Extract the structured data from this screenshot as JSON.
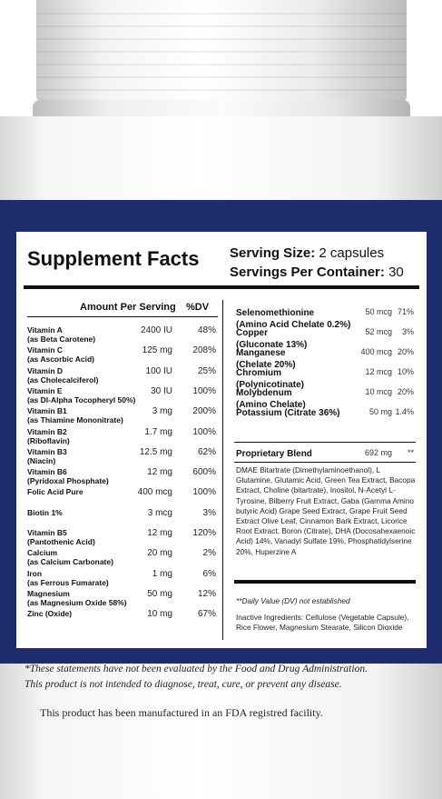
{
  "panel": {
    "title": "Supplement Facts",
    "serving_size_label": "Serving Size:",
    "serving_size_value": "2 capsules",
    "servings_label": "Servings Per Container:",
    "servings_value": "30",
    "col_amount": "Amount Per Serving",
    "col_dv": "%DV"
  },
  "left_rows": [
    {
      "n1": "Vitamin A",
      "n2": "(as Beta Carotene)",
      "amt": "2400 IU",
      "dv": "48%"
    },
    {
      "n1": "Vitamin C",
      "n2": "(as Ascorbic Acid)",
      "amt": "125 mg",
      "dv": "208%"
    },
    {
      "n1": "Vitamin D",
      "n2": "(as Cholecalciferol)",
      "amt": "100 IU",
      "dv": "25%"
    },
    {
      "n1": "Vitamin E",
      "n2": "(as Dl-Alpha Tocopheryl 50%)",
      "amt": "30 IU",
      "dv": "100%"
    },
    {
      "n1": "Vitamin B1",
      "n2": "(as Thiamine Mononitrate)",
      "amt": "3 mg",
      "dv": "200%"
    },
    {
      "n1": "Vitamin B2",
      "n2": "(Riboflavin)",
      "amt": "1.7 mg",
      "dv": "100%"
    },
    {
      "n1": "Vitamin B3",
      "n2": "(Niacin)",
      "amt": "12.5 mg",
      "dv": "62%"
    },
    {
      "n1": "Vitamin B6",
      "n2": "(Pyridoxal Phosphate)",
      "amt": "12 mg",
      "dv": "600%"
    },
    {
      "n1": "Folic Acid Pure",
      "n2": "",
      "amt": "400 mcg",
      "dv": "100%"
    },
    {
      "n1": "Biotin 1%",
      "n2": "",
      "amt": "3 mcg",
      "dv": "3%"
    },
    {
      "n1": "Vitamin B5",
      "n2": "(Pantothenic Acid)",
      "amt": "12 mg",
      "dv": "120%"
    },
    {
      "n1": "Calcium",
      "n2": "(as Calcium Carbonate)",
      "amt": "20 mg",
      "dv": "2%"
    },
    {
      "n1": "Iron",
      "n2": "(as Ferrous Fumarate)",
      "amt": "1 mg",
      "dv": "6%"
    },
    {
      "n1": "Magnesium",
      "n2": "(as Magnesium Oxide 58%)",
      "amt": "50 mg",
      "dv": "12%"
    },
    {
      "n1": "Zinc (Oxide)",
      "n2": "",
      "amt": "10 mg",
      "dv": "67%"
    }
  ],
  "right_rows": [
    {
      "n1": "Selenomethionine",
      "n2": "(Amino Acid Chelate 0.2%)",
      "amt": "50 mcg",
      "dv": "71%"
    },
    {
      "n1": "Copper",
      "n2": "(Gluconate 13%)",
      "amt": "52 mcg",
      "dv": "3%"
    },
    {
      "n1": "Manganese",
      "n2": "(Chelate 20%)",
      "amt": "400 mcg",
      "dv": "20%"
    },
    {
      "n1": "Chromium",
      "n2": "(Polynicotinate)",
      "amt": "12 mcg",
      "dv": "10%"
    },
    {
      "n1": "Molybdenum",
      "n2": "(Amino Chelate)",
      "amt": "10 mcg",
      "dv": "20%"
    },
    {
      "n1": "Potassium (Citrate 36%)",
      "n2": "",
      "amt": "50 mg",
      "dv": "1.4%"
    }
  ],
  "blend": {
    "name": "Proprietary Blend",
    "amt": "692 mg",
    "dv": "**",
    "ingredients": "DMAE Bitartrate (Dimethylaminoethanol), L Glutamine, Glutamic Acid, Green Tea Extract, Bacopa Extract, Choline (bitartrate), Inositol, N-Acetyl L-Tyrosine, Bilberry Fruit Extract, Gaba (Gamma Amino butyric Acid) Grape Seed Extract, Grape Fruit Seed Extract Olive Leaf, Cinnamon Bark Extract, Licorice Root Extract, Boron (Citrate), DHA (Docosahexaenoic Acid) 14%, Vanadyl Sulfate 19%, Phosphatidylserine 20%, Huperzine A"
  },
  "dv_note": "**Daily Value (DV) not established",
  "inactive": "Inactive Ingredients: Cellulose (Vegetable Capsule), Rice Flower, Magnesium Stearate, Silicon Dioxide",
  "disclaimer_1": "*These statements have not been evaluated by the Food and Drug Administration.",
  "disclaimer_2": "This product is not intended to diagnose, treat, cure, or prevent any disease.",
  "fda_note": "This product has been manufactured in an FDA registred facility."
}
